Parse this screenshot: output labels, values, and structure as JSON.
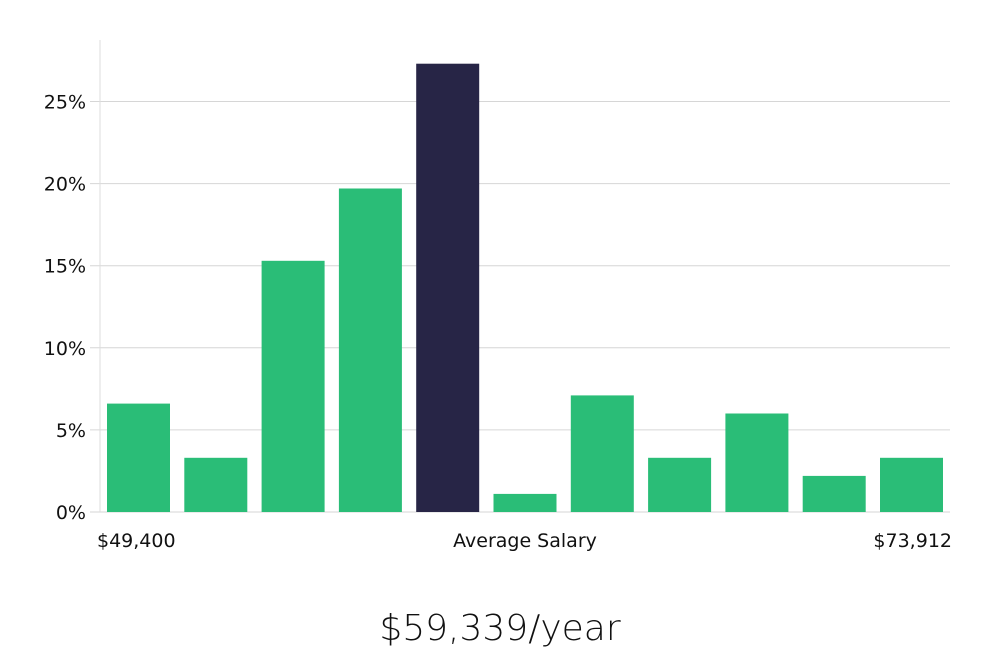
{
  "chart_data": {
    "type": "bar",
    "y_unit": "%",
    "ylim": [
      0,
      28
    ],
    "yticks": [
      0,
      5,
      10,
      15,
      20,
      25
    ],
    "ytick_labels": [
      "0%",
      "5%",
      "10%",
      "15%",
      "20%",
      "25%"
    ],
    "grid": true,
    "values": [
      6.6,
      3.3,
      15.3,
      19.7,
      27.3,
      1.1,
      7.1,
      3.3,
      6.0,
      2.2,
      3.3
    ],
    "highlight_index": 4,
    "colors": {
      "bar": "#2abd77",
      "highlight": "#272546",
      "grid": "#d6d6d6",
      "axis": "#dddddd"
    },
    "x_labels": {
      "min": "$49,400",
      "center": "Average Salary",
      "max": "$73,912"
    }
  },
  "summary": {
    "text": "$59,339/year"
  }
}
